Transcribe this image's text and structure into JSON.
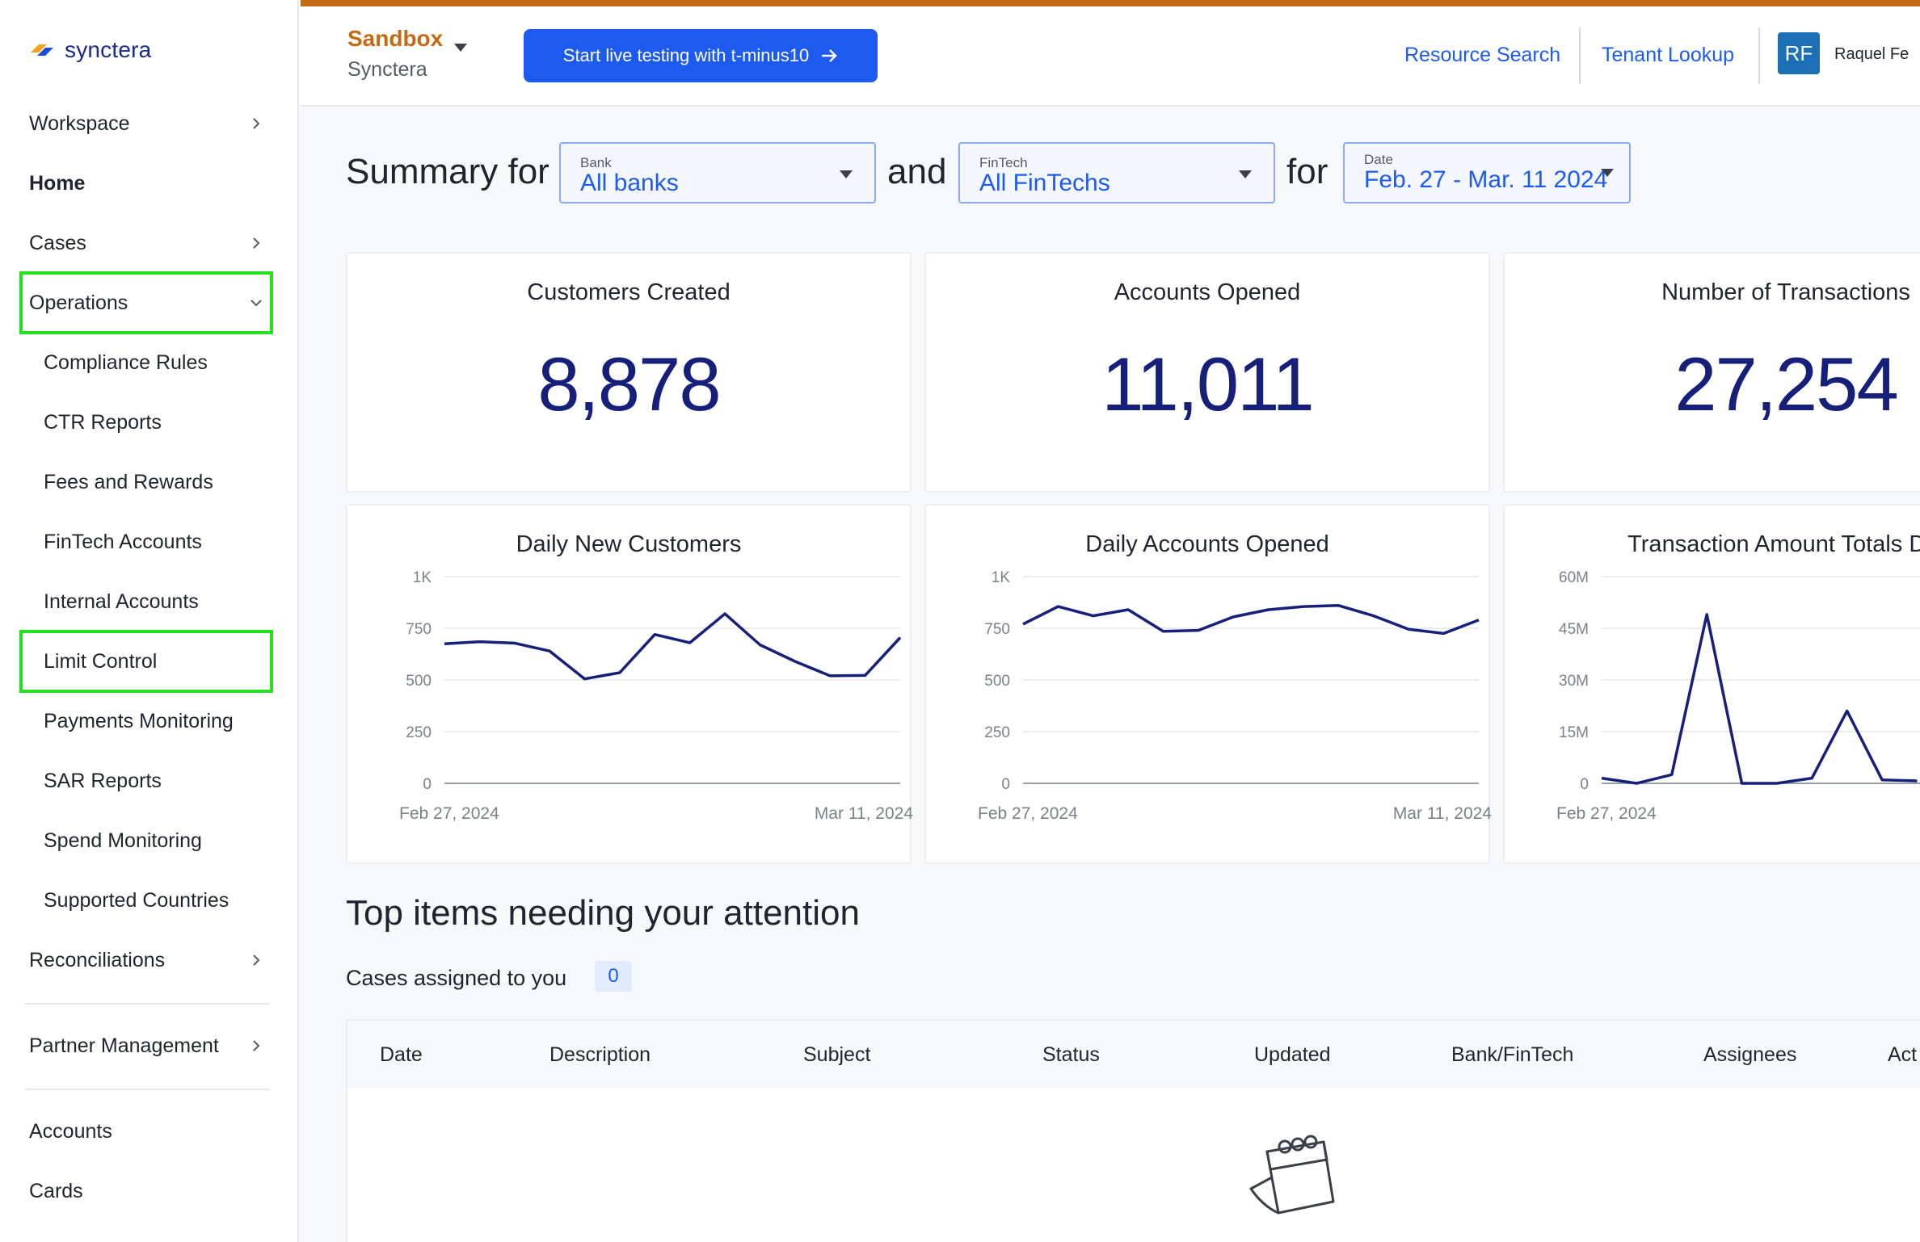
{
  "brand": {
    "name": "synctera"
  },
  "sidebar": {
    "items": [
      {
        "label": "Workspace"
      },
      {
        "label": "Home"
      },
      {
        "label": "Cases"
      },
      {
        "label": "Operations"
      },
      {
        "label": "Compliance Rules"
      },
      {
        "label": "CTR Reports"
      },
      {
        "label": "Fees and Rewards"
      },
      {
        "label": "FinTech Accounts"
      },
      {
        "label": "Internal Accounts"
      },
      {
        "label": "Limit Control"
      },
      {
        "label": "Payments Monitoring"
      },
      {
        "label": "SAR Reports"
      },
      {
        "label": "Spend Monitoring"
      },
      {
        "label": "Supported Countries"
      },
      {
        "label": "Reconciliations"
      },
      {
        "label": "Partner Management"
      },
      {
        "label": "Accounts"
      },
      {
        "label": "Cards"
      }
    ]
  },
  "topbar": {
    "env_name": "Sandbox",
    "env_org": "Synctera",
    "live_button": "Start live testing with t-minus10",
    "resource_search": "Resource Search",
    "tenant_lookup": "Tenant Lookup",
    "avatar_initials": "RF",
    "user_name": "Raquel Fe"
  },
  "summary": {
    "prefix": "Summary for",
    "and": "and",
    "for": "for",
    "bank": {
      "label": "Bank",
      "value": "All banks"
    },
    "fintech": {
      "label": "FinTech",
      "value": "All FinTechs"
    },
    "date": {
      "label": "Date",
      "value": "Feb. 27 - Mar. 11 2024"
    }
  },
  "stats": [
    {
      "title": "Customers Created",
      "value": "8,878"
    },
    {
      "title": "Accounts Opened",
      "value": "11,011"
    },
    {
      "title": "Number of Transactions",
      "value": "27,254"
    }
  ],
  "chart_data": [
    {
      "type": "line",
      "title": "Daily New Customers",
      "y_ticks": [
        "0",
        "250",
        "500",
        "750",
        "1K"
      ],
      "ylim": [
        0,
        1000
      ],
      "x_labels": [
        "Feb 27, 2024",
        "Mar 11, 2024"
      ],
      "values": [
        675,
        685,
        678,
        640,
        505,
        535,
        720,
        680,
        820,
        670,
        590,
        520,
        522,
        705
      ],
      "color": "#16207a"
    },
    {
      "type": "line",
      "title": "Daily Accounts Opened",
      "y_ticks": [
        "0",
        "250",
        "500",
        "750",
        "1K"
      ],
      "ylim": [
        0,
        1000
      ],
      "x_labels": [
        "Feb 27, 2024",
        "Mar 11, 2024"
      ],
      "values": [
        770,
        855,
        810,
        840,
        735,
        740,
        805,
        840,
        855,
        860,
        810,
        745,
        725,
        790
      ],
      "color": "#16207a"
    },
    {
      "type": "line",
      "title": "Transaction Amount Totals Dai",
      "y_ticks": [
        "0",
        "15M",
        "30M",
        "45M",
        "60M"
      ],
      "ylim": [
        0,
        60000000
      ],
      "x_labels": [
        "Feb 27, 2024"
      ],
      "values": [
        1500000,
        0,
        2500000,
        49000000,
        0,
        0,
        1500000,
        21000000,
        1000000,
        700000
      ],
      "color": "#16207a"
    }
  ],
  "attention": {
    "title": "Top items needing your attention",
    "cases_label": "Cases assigned to you",
    "cases_count": "0",
    "columns": [
      "Date",
      "Description",
      "Subject",
      "Status",
      "Updated",
      "Bank/FinTech",
      "Assignees",
      "Act"
    ]
  }
}
